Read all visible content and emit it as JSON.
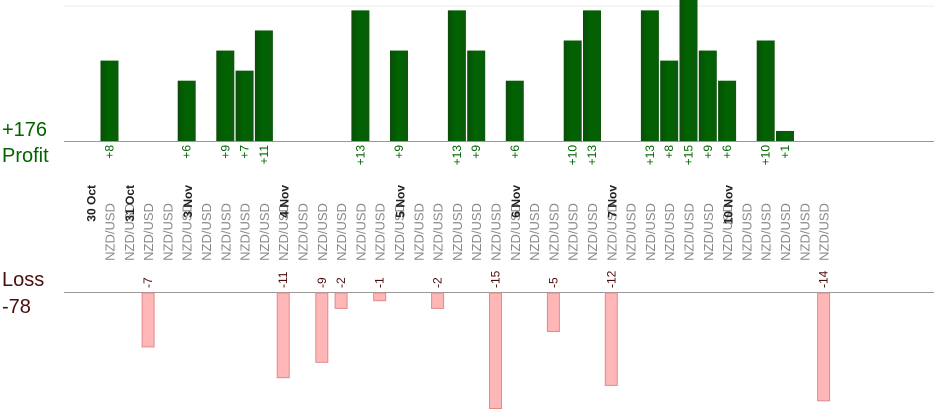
{
  "summary": {
    "profit_total": "+176",
    "profit_label": "Profit",
    "loss_label": "Loss",
    "loss_total": "-78"
  },
  "colors": {
    "profit_bar": "#006400",
    "profit_text": "#006400",
    "loss_bar": "#ffb6b6",
    "loss_border": "#e08a8a",
    "loss_text": "#4a0d0d",
    "axis": "#999999"
  },
  "chart_data": {
    "type": "bar",
    "y_unit": "pips",
    "profit_ylim": [
      0,
      14
    ],
    "loss_ylim": [
      0,
      15
    ],
    "trades": [
      {
        "date": "30 Oct",
        "pair": "NZD/USD",
        "value": 8
      },
      {
        "date": "",
        "pair": "NZD/USD",
        "value": null
      },
      {
        "date": "31 Oct",
        "pair": "NZD/USD",
        "value": -7
      },
      {
        "date": "",
        "pair": "NZD/USD",
        "value": null
      },
      {
        "date": "",
        "pair": "NZD/USD",
        "value": 6
      },
      {
        "date": "3 Nov",
        "pair": "NZD/USD",
        "value": null
      },
      {
        "date": "",
        "pair": "NZD/USD",
        "value": 9
      },
      {
        "date": "",
        "pair": "NZD/USD",
        "value": 7
      },
      {
        "date": "",
        "pair": "NZD/USD",
        "value": 11
      },
      {
        "date": "",
        "pair": "NZD/USD",
        "value": -11
      },
      {
        "date": "4 Nov",
        "pair": "NZD/USD",
        "value": null
      },
      {
        "date": "",
        "pair": "NZD/USD",
        "value": -9
      },
      {
        "date": "",
        "pair": "NZD/USD",
        "value": -2
      },
      {
        "date": "",
        "pair": "NZD/USD",
        "value": 13
      },
      {
        "date": "",
        "pair": "NZD/USD",
        "value": -1
      },
      {
        "date": "",
        "pair": "NZD/USD",
        "value": 9
      },
      {
        "date": "5 Nov",
        "pair": "NZD/USD",
        "value": null
      },
      {
        "date": "",
        "pair": "NZD/USD",
        "value": -2
      },
      {
        "date": "",
        "pair": "NZD/USD",
        "value": 13
      },
      {
        "date": "",
        "pair": "NZD/USD",
        "value": 9
      },
      {
        "date": "",
        "pair": "NZD/USD",
        "value": -15
      },
      {
        "date": "",
        "pair": "NZD/USD",
        "value": 6
      },
      {
        "date": "6 Nov",
        "pair": "NZD/USD",
        "value": null
      },
      {
        "date": "",
        "pair": "NZD/USD",
        "value": -5
      },
      {
        "date": "",
        "pair": "NZD/USD",
        "value": 10
      },
      {
        "date": "",
        "pair": "NZD/USD",
        "value": 13
      },
      {
        "date": "",
        "pair": "NZD/USD",
        "value": -12
      },
      {
        "date": "7 Nov",
        "pair": "NZD/USD",
        "value": null
      },
      {
        "date": "",
        "pair": "NZD/USD",
        "value": 13
      },
      {
        "date": "",
        "pair": "NZD/USD",
        "value": 8
      },
      {
        "date": "",
        "pair": "NZD/USD",
        "value": 15
      },
      {
        "date": "",
        "pair": "NZD/USD",
        "value": 9
      },
      {
        "date": "",
        "pair": "NZD/USD",
        "value": 6
      },
      {
        "date": "10 Nov",
        "pair": "NZD/USD",
        "value": null
      },
      {
        "date": "",
        "pair": "NZD/USD",
        "value": 10
      },
      {
        "date": "",
        "pair": "NZD/USD",
        "value": 1
      },
      {
        "date": "",
        "pair": "NZD/USD",
        "value": null
      },
      {
        "date": "",
        "pair": "NZD/USD",
        "value": -14
      }
    ]
  }
}
